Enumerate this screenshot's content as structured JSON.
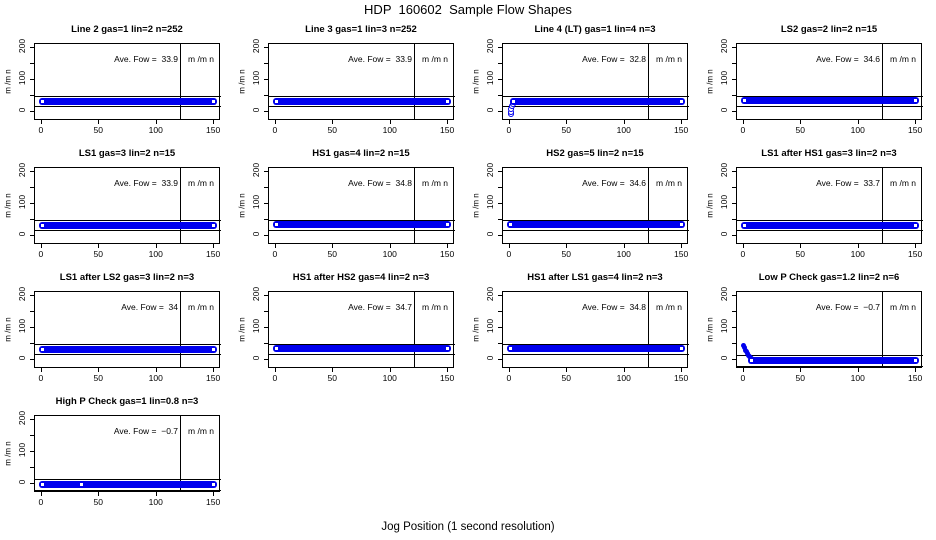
{
  "page": {
    "title": "HDP  160602  Sample Flow Shapes",
    "xlabel": "Jog Position (1 second resolution)"
  },
  "colors": {
    "series_blue": "#0000EE",
    "reference_black": "#000000",
    "background": "#FFFFFF"
  },
  "chart_data": {
    "type": "line",
    "layout": "4x4 grid of small multiples, 13 plots",
    "axes": {
      "x_tick_labels": [
        "0",
        "50",
        "100",
        "150"
      ],
      "x_tick_values": [
        0,
        50,
        100,
        150
      ],
      "y_tick_labels": [
        "0",
        "100",
        "200"
      ],
      "y_tick_values": [
        0,
        100,
        200
      ],
      "y_minor_tick_values": [
        50,
        150
      ],
      "xlim": [
        0,
        150
      ],
      "ylim": [
        0,
        200
      ],
      "ylabel": "m /m n",
      "xlabel": "Jog Position (1 second resolution)",
      "vline_x": 120,
      "grid": false,
      "legend": "none"
    },
    "subplots": [
      {
        "title": "Line 2 gas=1 lin=2 n=252",
        "ave_label": "Ave. Fow =  33.9",
        "unit": "m /m n",
        "ave_flow": 33.9,
        "shape": "flat",
        "flat_level": 33.9,
        "x_range": [
          0,
          150
        ],
        "ref_lines": [
          50,
          18
        ],
        "transient_points": [],
        "mid_dots": []
      },
      {
        "title": "Line 3 gas=1 lin=3 n=252",
        "ave_label": "Ave. Fow =  33.9",
        "unit": "m /m n",
        "ave_flow": 33.9,
        "shape": "flat",
        "flat_level": 33.9,
        "x_range": [
          0,
          150
        ],
        "ref_lines": [
          50,
          18
        ],
        "transient_points": [],
        "mid_dots": []
      },
      {
        "title": "Line 4 (LT) gas=1 lin=4 n=3",
        "ave_label": "Ave. Fow =  32.8",
        "unit": "m /m n",
        "ave_flow": 32.8,
        "shape": "rise",
        "flat_level": 32.8,
        "x_range": [
          3,
          150
        ],
        "ref_lines": [
          50,
          18
        ],
        "transient_points": [
          [
            0.8,
            -7
          ],
          [
            1.0,
            1
          ],
          [
            1.3,
            9
          ],
          [
            1.8,
            18
          ],
          [
            2.5,
            26
          ]
        ],
        "mid_dots": []
      },
      {
        "title": "LS2 gas=2 lin=2 n=15",
        "ave_label": "Ave. Fow =  34.6",
        "unit": "m /m n",
        "ave_flow": 34.6,
        "shape": "flat",
        "flat_level": 34.6,
        "x_range": [
          0,
          150
        ],
        "ref_lines": [
          50,
          18
        ],
        "transient_points": [],
        "mid_dots": []
      },
      {
        "title": "LS1 gas=3 lin=2 n=15",
        "ave_label": "Ave. Fow =  33.9",
        "unit": "m /m n",
        "ave_flow": 33.9,
        "shape": "flat",
        "flat_level": 33.9,
        "x_range": [
          0,
          150
        ],
        "ref_lines": [
          50,
          18
        ],
        "transient_points": [],
        "mid_dots": []
      },
      {
        "title": "HS1 gas=4 lin=2 n=15",
        "ave_label": "Ave. Fow =  34.8",
        "unit": "m /m n",
        "ave_flow": 34.8,
        "shape": "flat",
        "flat_level": 34.8,
        "x_range": [
          0,
          150
        ],
        "ref_lines": [
          50,
          18
        ],
        "transient_points": [],
        "mid_dots": []
      },
      {
        "title": "HS2 gas=5 lin=2 n=15",
        "ave_label": "Ave. Fow =  34.6",
        "unit": "m /m n",
        "ave_flow": 34.6,
        "shape": "flat",
        "flat_level": 34.6,
        "x_range": [
          0,
          150
        ],
        "ref_lines": [
          50,
          18
        ],
        "transient_points": [],
        "mid_dots": []
      },
      {
        "title": "LS1 after HS1 gas=3 lin=2 n=3",
        "ave_label": "Ave. Fow =  33.7",
        "unit": "m /m n",
        "ave_flow": 33.7,
        "shape": "flat",
        "flat_level": 33.7,
        "x_range": [
          0,
          150
        ],
        "ref_lines": [
          50,
          18
        ],
        "transient_points": [],
        "mid_dots": []
      },
      {
        "title": "LS1 after LS2 gas=3 lin=2 n=3",
        "ave_label": "Ave. Fow =  34",
        "unit": "m /m n",
        "ave_flow": 34,
        "shape": "flat",
        "flat_level": 34,
        "x_range": [
          0,
          150
        ],
        "ref_lines": [
          50,
          18
        ],
        "transient_points": [],
        "mid_dots": []
      },
      {
        "title": "HS1 after HS2 gas=4 lin=2 n=3",
        "ave_label": "Ave. Fow =  34.7",
        "unit": "m /m n",
        "ave_flow": 34.7,
        "shape": "flat",
        "flat_level": 34.7,
        "x_range": [
          0,
          150
        ],
        "ref_lines": [
          50,
          18
        ],
        "transient_points": [],
        "mid_dots": []
      },
      {
        "title": "HS1 after LS1 gas=4 lin=2 n=3",
        "ave_label": "Ave. Fow =  34.8",
        "unit": "m /m n",
        "ave_flow": 34.8,
        "shape": "flat",
        "flat_level": 34.8,
        "x_range": [
          0,
          150
        ],
        "ref_lines": [
          50,
          18
        ],
        "transient_points": [],
        "mid_dots": []
      },
      {
        "title": "Low P Check gas=1.2 lin=2 n=6",
        "ave_label": "Ave. Fow =  −0.7",
        "unit": "m /m n",
        "ave_flow": -0.7,
        "shape": "decay",
        "flat_level": -0.7,
        "x_range": [
          6,
          150
        ],
        "ref_lines": [
          15,
          -20
        ],
        "transient_points": [
          [
            0,
            46
          ],
          [
            0.8,
            38
          ],
          [
            1.6,
            31
          ],
          [
            2.4,
            25
          ],
          [
            3.2,
            20
          ],
          [
            4,
            15.5
          ],
          [
            5,
            11
          ],
          [
            6,
            7.5
          ],
          [
            7,
            5
          ],
          [
            8,
            3
          ],
          [
            9,
            1.5
          ],
          [
            10,
            0.5
          ],
          [
            11,
            -0.3
          ],
          [
            12,
            -0.6
          ]
        ],
        "mid_dots": []
      },
      {
        "title": "High P Check gas=1 lin=0.8 n=3",
        "ave_label": "Ave. Fow =  −0.7",
        "unit": "m /m n",
        "ave_flow": -0.7,
        "shape": "flat",
        "flat_level": -0.7,
        "x_range": [
          0,
          150
        ],
        "ref_lines": [
          15,
          -20
        ],
        "transient_points": [],
        "mid_dots": [
          33
        ]
      }
    ]
  }
}
